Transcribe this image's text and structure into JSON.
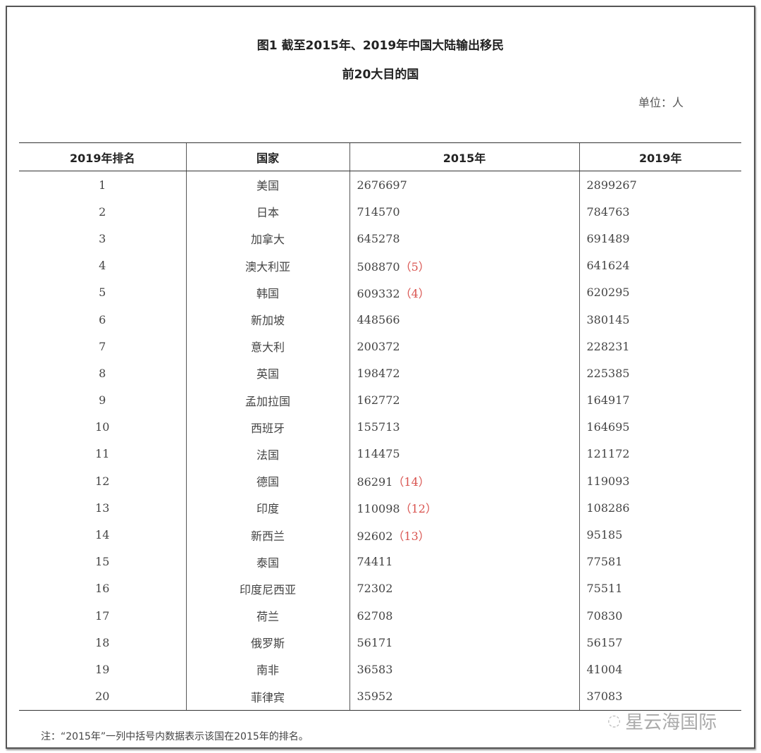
{
  "title_line1": "图1  截至2015年、2019年中国大陆输出移民",
  "title_line2": "前20大目的国",
  "unit": "单位：人",
  "headers": [
    "2019年排名",
    "国家",
    "2015年",
    "2019年"
  ],
  "rows": [
    {
      "rank": "1",
      "country": "美国",
      "v2015": "2676697",
      "rank2015": "",
      "v2019": "2899267"
    },
    {
      "rank": "2",
      "country": "日本",
      "v2015": "714570",
      "rank2015": "",
      "v2019": "784763"
    },
    {
      "rank": "3",
      "country": "加拿大",
      "v2015": "645278",
      "rank2015": "",
      "v2019": "691489"
    },
    {
      "rank": "4",
      "country": "澳大利亚",
      "v2015": "508870",
      "rank2015": "（5）",
      "v2019": "641624"
    },
    {
      "rank": "5",
      "country": "韩国",
      "v2015": "609332",
      "rank2015": "（4）",
      "v2019": "620295"
    },
    {
      "rank": "6",
      "country": "新加坡",
      "v2015": "448566",
      "rank2015": "",
      "v2019": "380145"
    },
    {
      "rank": "7",
      "country": "意大利",
      "v2015": "200372",
      "rank2015": "",
      "v2019": "228231"
    },
    {
      "rank": "8",
      "country": "英国",
      "v2015": "198472",
      "rank2015": "",
      "v2019": "225385"
    },
    {
      "rank": "9",
      "country": "孟加拉国",
      "v2015": "162772",
      "rank2015": "",
      "v2019": "164917"
    },
    {
      "rank": "10",
      "country": "西班牙",
      "v2015": "155713",
      "rank2015": "",
      "v2019": "164695"
    },
    {
      "rank": "11",
      "country": "法国",
      "v2015": "114475",
      "rank2015": "",
      "v2019": "121172"
    },
    {
      "rank": "12",
      "country": "德国",
      "v2015": "86291",
      "rank2015": "（14）",
      "v2019": "119093"
    },
    {
      "rank": "13",
      "country": "印度",
      "v2015": "110098",
      "rank2015": "（12）",
      "v2019": "108286"
    },
    {
      "rank": "14",
      "country": "新西兰",
      "v2015": "92602",
      "rank2015": "（13）",
      "v2019": "95185"
    },
    {
      "rank": "15",
      "country": "泰国",
      "v2015": "74411",
      "rank2015": "",
      "v2019": "77581"
    },
    {
      "rank": "16",
      "country": "印度尼西亚",
      "v2015": "72302",
      "rank2015": "",
      "v2019": "75511"
    },
    {
      "rank": "17",
      "country": "荷兰",
      "v2015": "62708",
      "rank2015": "",
      "v2019": "70830"
    },
    {
      "rank": "18",
      "country": "俄罗斯",
      "v2015": "56171",
      "rank2015": "",
      "v2019": "56157"
    },
    {
      "rank": "19",
      "country": "南非",
      "v2015": "36583",
      "rank2015": "",
      "v2019": "41004"
    },
    {
      "rank": "20",
      "country": "菲律宾",
      "v2015": "35952",
      "rank2015": "",
      "v2019": "37083"
    }
  ],
  "note": "注：“2015年”一列中括号内数据表示该国在2015年的排名。",
  "watermark": "星云海国际",
  "colors": {
    "rank_highlight": "#d9534f",
    "border": "#333333"
  }
}
